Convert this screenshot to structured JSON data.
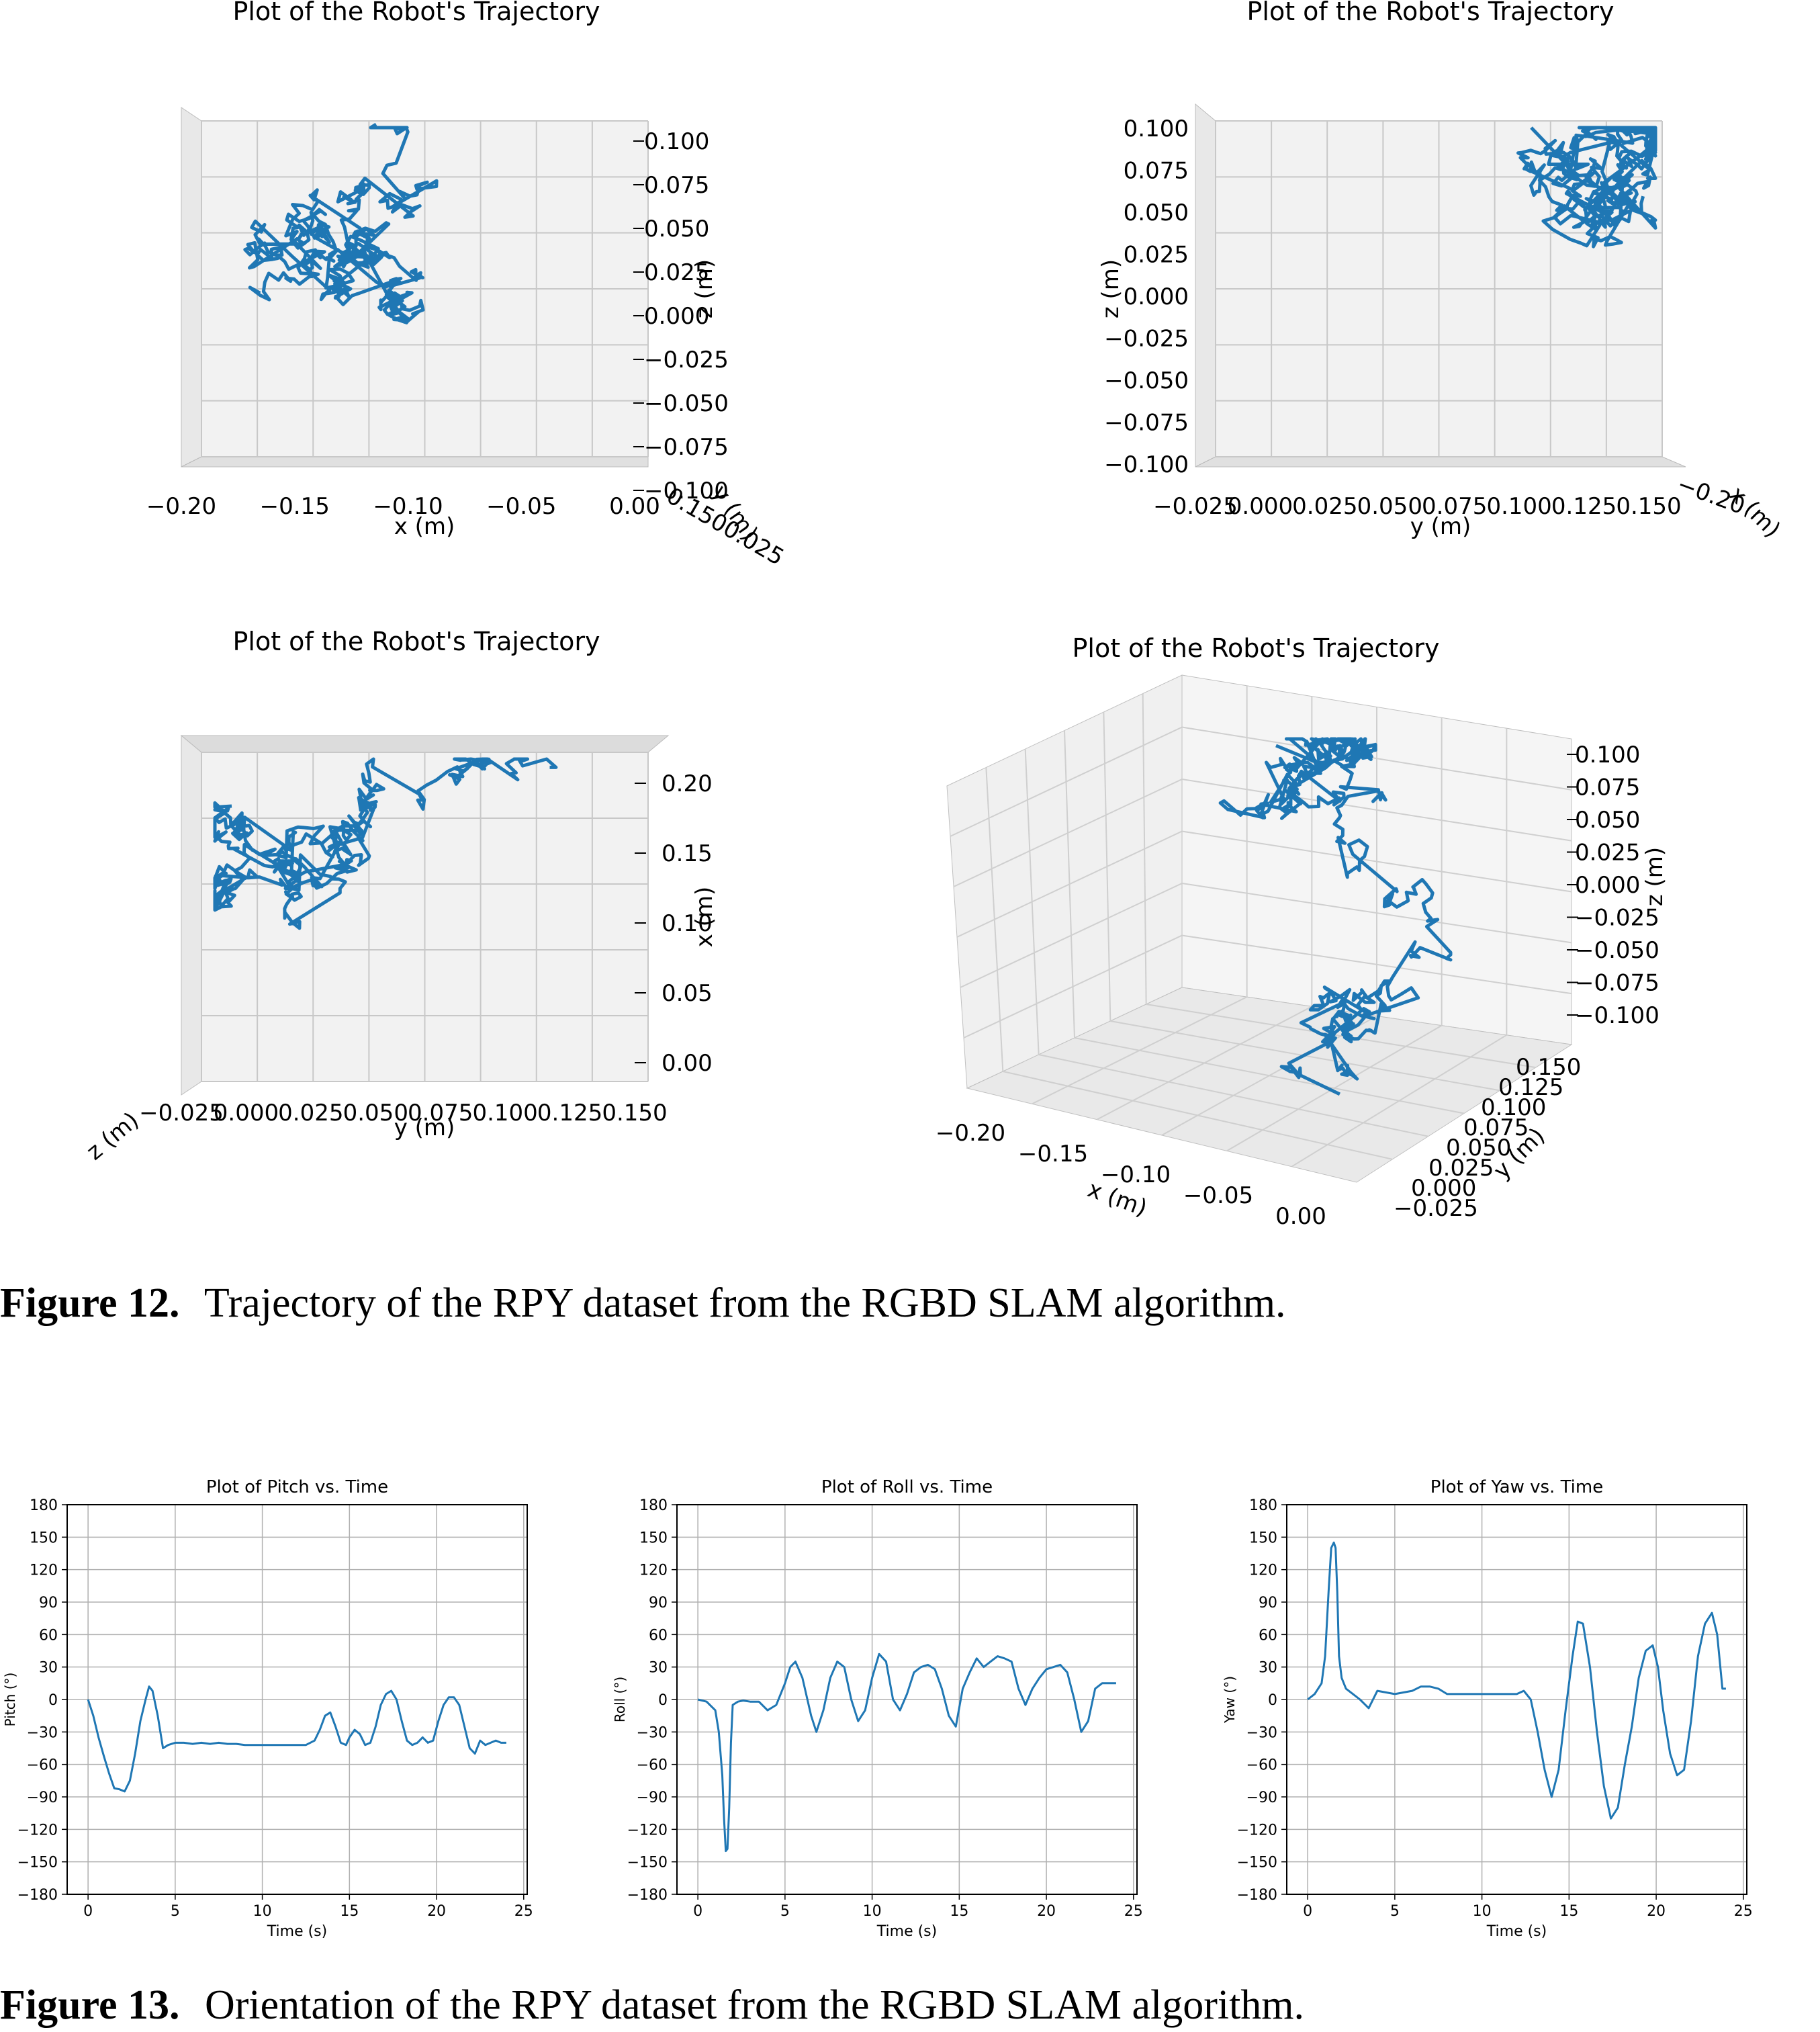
{
  "figure12": {
    "caption_label": "Figure 12.",
    "caption_text": "Trajectory of the RPY dataset from the RGBD SLAM algorithm."
  },
  "figure13": {
    "caption_label": "Figure 13.",
    "caption_text": "Orientation of the RPY dataset from the RGBD SLAM algorithm."
  },
  "chart_data": [
    {
      "id": "traj-xz",
      "type": "line",
      "title": "Plot of the Robot's Trajectory",
      "view": "x-z projection (3D plot viewed along y)",
      "xlabel": "x (m)",
      "ylabel": "z (m)",
      "depth_label": "y (m)",
      "x_ticks": [
        "−0.20",
        "−0.15",
        "−0.10",
        "−0.05",
        "0.00"
      ],
      "y_ticks": [
        "0.100",
        "0.075",
        "0.050",
        "0.025",
        "0.000",
        "−0.025",
        "−0.050",
        "−0.075",
        "−0.100"
      ],
      "xlim": [
        -0.21,
        0.0
      ],
      "ylim": [
        -0.1,
        0.1
      ],
      "grid": true,
      "color": "#1f77b4"
    },
    {
      "id": "traj-yz",
      "type": "line",
      "title": "Plot of the Robot's Trajectory",
      "view": "y-z projection (3D plot viewed along x)",
      "xlabel": "y (m)",
      "ylabel": "z (m)",
      "depth_label": "x (m)",
      "x_ticks": [
        "−0.025",
        "0.000",
        "0.025",
        "0.050",
        "0.075",
        "0.100",
        "0.125",
        "0.150"
      ],
      "y_ticks": [
        "0.100",
        "0.075",
        "0.050",
        "0.025",
        "0.000",
        "−0.025",
        "−0.050",
        "−0.075",
        "−0.100"
      ],
      "xlim": [
        -0.025,
        0.15
      ],
      "ylim": [
        -0.1,
        0.1
      ],
      "grid": true,
      "color": "#1f77b4"
    },
    {
      "id": "traj-yx",
      "type": "line",
      "title": "Plot of the Robot's Trajectory",
      "view": "y-x projection (3D plot viewed from top)",
      "xlabel": "y (m)",
      "ylabel": "x (m)",
      "depth_label": "z (m)",
      "x_ticks": [
        "−0.025",
        "0.000",
        "0.025",
        "0.050",
        "0.075",
        "0.100",
        "0.125",
        "0.150"
      ],
      "y_ticks": [
        "0.20",
        "0.15",
        "0.10",
        "0.05",
        "0.00"
      ],
      "xlim": [
        -0.025,
        0.15
      ],
      "ylim": [
        0.0,
        0.2
      ],
      "grid": true,
      "color": "#1f77b4"
    },
    {
      "id": "traj-3d",
      "type": "line",
      "title": "Plot of the Robot's Trajectory",
      "view": "3D perspective",
      "xlabel": "x (m)",
      "ylabel": "y (m)",
      "zlabel": "z (m)",
      "x_ticks": [
        "−0.20",
        "−0.15",
        "−0.10",
        "−0.05",
        "0.00"
      ],
      "y_ticks": [
        "−0.025",
        "0.000",
        "0.025",
        "0.050",
        "0.075",
        "0.100",
        "0.125",
        "0.150"
      ],
      "z_ticks": [
        "0.100",
        "0.075",
        "0.050",
        "0.025",
        "0.000",
        "−0.025",
        "−0.050",
        "−0.075",
        "−0.100"
      ],
      "grid": true,
      "color": "#1f77b4"
    },
    {
      "id": "pitch",
      "type": "line",
      "title": "Plot of Pitch vs. Time",
      "xlabel": "Time (s)",
      "ylabel": "Pitch (°)",
      "xlim": [
        -1.2,
        25.2
      ],
      "ylim": [
        -180,
        180
      ],
      "x_ticks": [
        0,
        5,
        10,
        15,
        20,
        25
      ],
      "y_ticks": [
        180,
        150,
        120,
        90,
        60,
        30,
        0,
        -30,
        -60,
        -90,
        -120,
        -150,
        -180
      ],
      "grid": true,
      "color": "#1f77b4",
      "x": [
        0,
        0.3,
        0.6,
        0.9,
        1.2,
        1.5,
        1.8,
        2.1,
        2.4,
        2.7,
        3.0,
        3.3,
        3.5,
        3.7,
        4.0,
        4.3,
        4.6,
        5.0,
        5.5,
        6.0,
        6.5,
        7.0,
        7.5,
        8.0,
        8.5,
        9.0,
        9.5,
        10.0,
        10.5,
        11.0,
        11.5,
        12.0,
        12.5,
        13.0,
        13.3,
        13.6,
        13.9,
        14.2,
        14.5,
        14.8,
        15.0,
        15.3,
        15.6,
        15.9,
        16.2,
        16.5,
        16.8,
        17.1,
        17.4,
        17.7,
        18.0,
        18.3,
        18.6,
        18.9,
        19.2,
        19.5,
        19.8,
        20.1,
        20.4,
        20.7,
        21.0,
        21.3,
        21.6,
        21.9,
        22.2,
        22.5,
        22.8,
        23.1,
        23.4,
        23.7,
        24.0
      ],
      "values": [
        0,
        -15,
        -35,
        -52,
        -68,
        -82,
        -83,
        -85,
        -75,
        -50,
        -20,
        0,
        12,
        8,
        -15,
        -45,
        -42,
        -40,
        -40,
        -41,
        -40,
        -41,
        -40,
        -41,
        -41,
        -42,
        -42,
        -42,
        -42,
        -42,
        -42,
        -42,
        -42,
        -38,
        -28,
        -15,
        -12,
        -25,
        -40,
        -42,
        -35,
        -28,
        -32,
        -42,
        -40,
        -25,
        -5,
        5,
        8,
        0,
        -20,
        -38,
        -42,
        -40,
        -35,
        -40,
        -38,
        -20,
        -5,
        2,
        2,
        -5,
        -25,
        -45,
        -50,
        -38,
        -42,
        -40,
        -38,
        -40,
        -40
      ]
    },
    {
      "id": "roll",
      "type": "line",
      "title": "Plot of Roll vs. Time",
      "xlabel": "Time (s)",
      "ylabel": "Roll (°)",
      "xlim": [
        -1.2,
        25.2
      ],
      "ylim": [
        -180,
        180
      ],
      "x_ticks": [
        0,
        5,
        10,
        15,
        20,
        25
      ],
      "y_ticks": [
        180,
        150,
        120,
        90,
        60,
        30,
        0,
        -30,
        -60,
        -90,
        -120,
        -150,
        -180
      ],
      "grid": true,
      "color": "#1f77b4",
      "x": [
        0,
        0.5,
        1.0,
        1.2,
        1.4,
        1.5,
        1.6,
        1.7,
        1.8,
        1.9,
        2.0,
        2.3,
        2.6,
        3.0,
        3.5,
        4.0,
        4.5,
        5.0,
        5.3,
        5.6,
        6.0,
        6.5,
        6.8,
        7.2,
        7.6,
        8.0,
        8.4,
        8.8,
        9.2,
        9.6,
        10.0,
        10.4,
        10.8,
        11.2,
        11.6,
        12.0,
        12.4,
        12.8,
        13.2,
        13.6,
        14.0,
        14.4,
        14.8,
        15.2,
        15.6,
        16.0,
        16.4,
        16.8,
        17.2,
        17.6,
        18.0,
        18.4,
        18.8,
        19.2,
        19.6,
        20.0,
        20.4,
        20.8,
        21.2,
        21.6,
        22.0,
        22.4,
        22.8,
        23.2,
        23.6,
        24.0
      ],
      "values": [
        0,
        -2,
        -10,
        -30,
        -70,
        -110,
        -140,
        -138,
        -100,
        -40,
        -5,
        -2,
        -1,
        -2,
        -2,
        -10,
        -5,
        15,
        30,
        35,
        20,
        -15,
        -30,
        -10,
        20,
        35,
        30,
        0,
        -20,
        -10,
        20,
        42,
        35,
        0,
        -10,
        5,
        25,
        30,
        32,
        28,
        10,
        -15,
        -25,
        10,
        25,
        38,
        30,
        35,
        40,
        38,
        35,
        10,
        -5,
        10,
        20,
        28,
        30,
        32,
        25,
        0,
        -30,
        -20,
        10,
        15,
        15,
        15
      ]
    },
    {
      "id": "yaw",
      "type": "line",
      "title": "Plot of Yaw vs. Time",
      "xlabel": "Time (s)",
      "ylabel": "Yaw (°)",
      "xlim": [
        -1.2,
        25.2
      ],
      "ylim": [
        -180,
        180
      ],
      "x_ticks": [
        0,
        5,
        10,
        15,
        20,
        25
      ],
      "y_ticks": [
        180,
        150,
        120,
        90,
        60,
        30,
        0,
        -30,
        -60,
        -90,
        -120,
        -150,
        -180
      ],
      "grid": true,
      "color": "#1f77b4",
      "x": [
        0,
        0.4,
        0.8,
        1.0,
        1.2,
        1.35,
        1.5,
        1.6,
        1.7,
        1.8,
        1.95,
        2.2,
        2.6,
        3.0,
        3.5,
        4.0,
        5.0,
        6.0,
        6.5,
        7.0,
        7.5,
        8.0,
        9.0,
        10.0,
        11.0,
        11.5,
        12.0,
        12.4,
        12.8,
        13.2,
        13.6,
        14.0,
        14.4,
        14.8,
        15.2,
        15.5,
        15.8,
        16.2,
        16.6,
        17.0,
        17.4,
        17.8,
        18.2,
        18.6,
        19.0,
        19.4,
        19.8,
        20.1,
        20.4,
        20.8,
        21.2,
        21.6,
        22.0,
        22.4,
        22.8,
        23.2,
        23.5,
        23.8,
        24.0
      ],
      "values": [
        0,
        5,
        15,
        40,
        100,
        140,
        145,
        140,
        100,
        40,
        20,
        10,
        5,
        0,
        -8,
        8,
        5,
        8,
        12,
        12,
        10,
        5,
        5,
        5,
        5,
        5,
        5,
        8,
        0,
        -30,
        -65,
        -90,
        -65,
        -10,
        40,
        72,
        70,
        30,
        -30,
        -80,
        -110,
        -100,
        -60,
        -25,
        20,
        45,
        50,
        30,
        -10,
        -50,
        -70,
        -65,
        -20,
        40,
        70,
        80,
        60,
        10,
        10
      ]
    }
  ]
}
